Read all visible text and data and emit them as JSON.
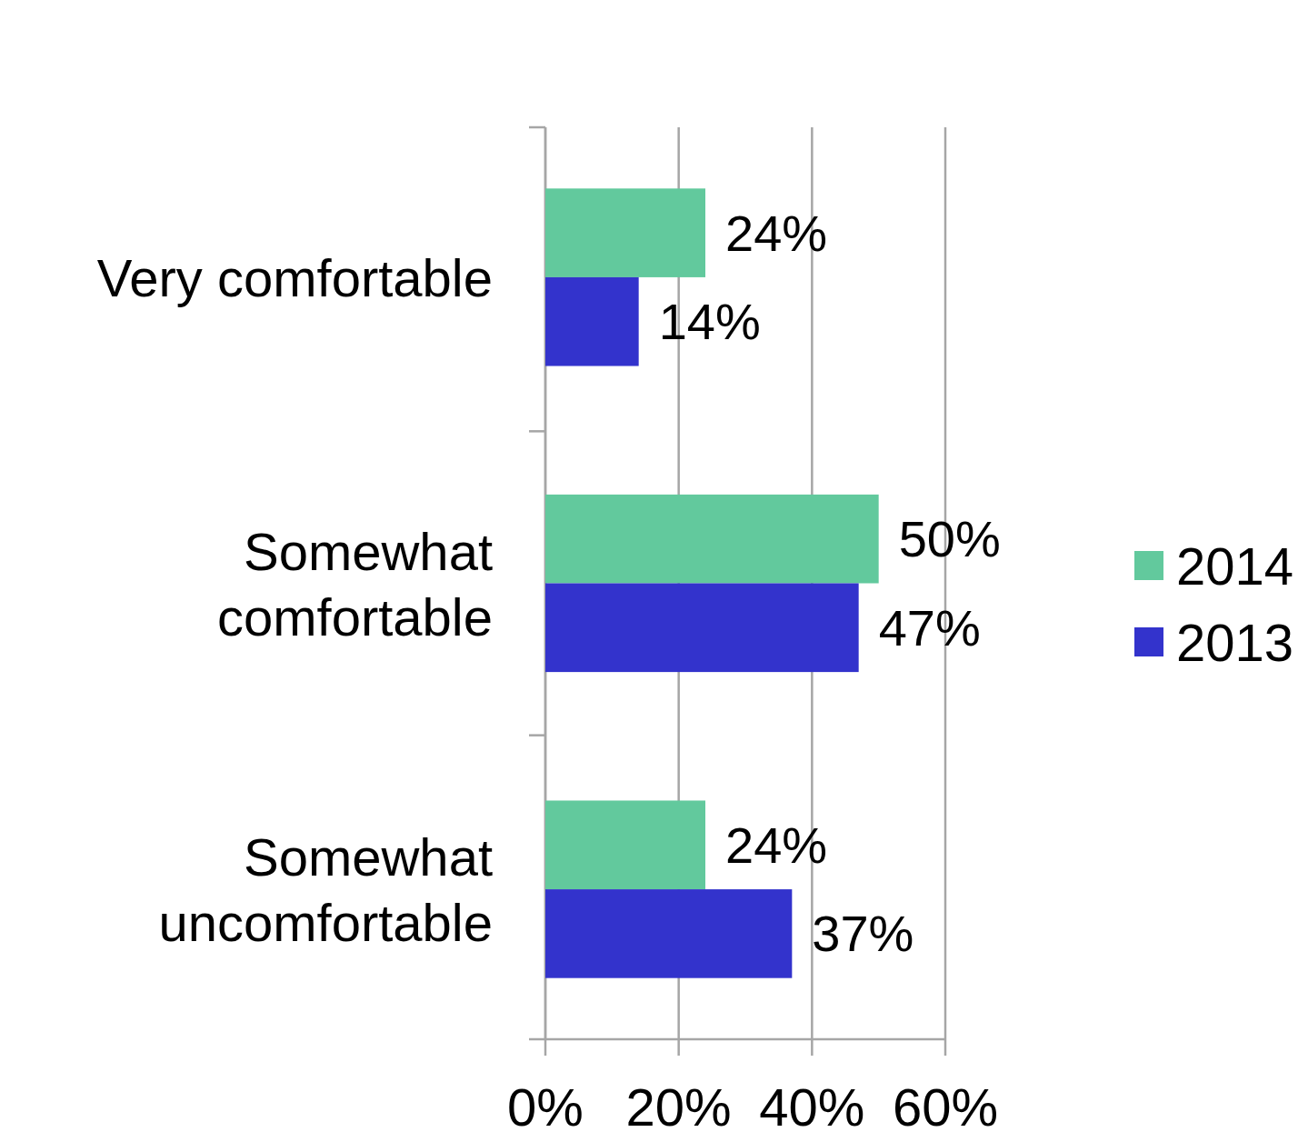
{
  "chart_data": {
    "type": "bar",
    "orientation": "horizontal",
    "categories": [
      "Very comfortable",
      "Somewhat comfortable",
      "Somewhat uncomfortable"
    ],
    "series": [
      {
        "name": "2014",
        "color": "#62c99d",
        "values": [
          24,
          50,
          24
        ],
        "value_labels": [
          "24%",
          "50%",
          "24%"
        ]
      },
      {
        "name": "2013",
        "color": "#3333cc",
        "values": [
          14,
          47,
          37
        ],
        "value_labels": [
          "14%",
          "47%",
          "37%"
        ]
      }
    ],
    "xlim": [
      0,
      60
    ],
    "xticks": [
      {
        "value": 0,
        "label": "0%"
      },
      {
        "value": 20,
        "label": "20%"
      },
      {
        "value": 40,
        "label": "40%"
      },
      {
        "value": 60,
        "label": "60%"
      }
    ],
    "grid": "x",
    "legend": "right"
  }
}
